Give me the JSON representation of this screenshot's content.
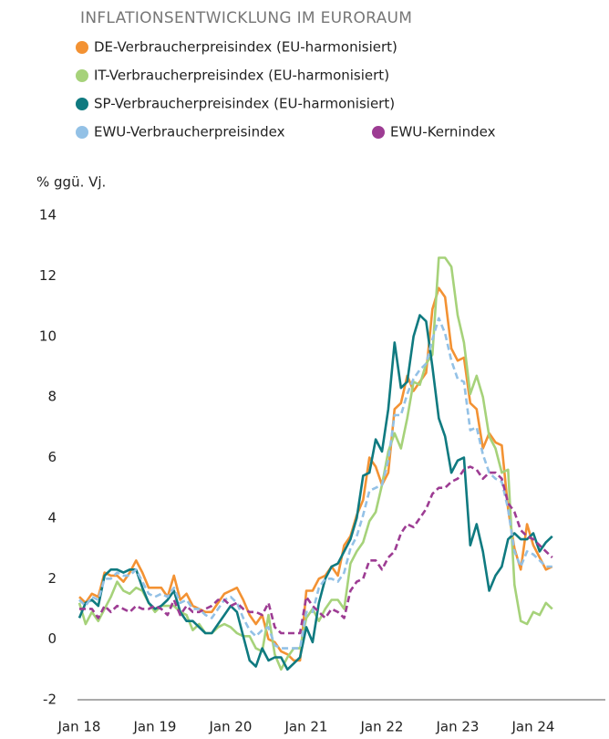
{
  "chart_data": {
    "type": "line",
    "title": "INFLATIONSENTWICKLUNG IM EURORAUM",
    "y_label": "% ggü. Vj.",
    "categories": [
      "Jan 18",
      null,
      null,
      null,
      null,
      null,
      null,
      null,
      null,
      null,
      null,
      null,
      "Jan 19",
      null,
      null,
      null,
      null,
      null,
      null,
      null,
      null,
      null,
      null,
      null,
      "Jan 20",
      null,
      null,
      null,
      null,
      null,
      null,
      null,
      null,
      null,
      null,
      null,
      "Jan 21",
      null,
      null,
      null,
      null,
      null,
      null,
      null,
      null,
      null,
      null,
      null,
      "Jan 22",
      null,
      null,
      null,
      null,
      null,
      null,
      null,
      null,
      null,
      null,
      null,
      "Jan 23",
      null,
      null,
      null,
      null,
      null,
      null,
      null,
      null,
      null,
      null,
      null,
      "Jan 24",
      null,
      null,
      null
    ],
    "ylim": [
      -2,
      14
    ],
    "yticks": [
      -2,
      0,
      2,
      4,
      6,
      8,
      10,
      12,
      14
    ],
    "grid": false,
    "series": [
      {
        "name": "DE-Verbraucherpreisindex (EU-harmonisiert)",
        "color": "#f39233",
        "dashed": false,
        "values": [
          1.4,
          1.2,
          1.5,
          1.4,
          2.2,
          2.1,
          2.1,
          1.9,
          2.2,
          2.6,
          2.2,
          1.7,
          1.7,
          1.7,
          1.4,
          2.1,
          1.3,
          1.5,
          1.1,
          1.0,
          0.9,
          0.9,
          1.2,
          1.5,
          1.6,
          1.7,
          1.3,
          0.8,
          0.5,
          0.8,
          0.0,
          -0.1,
          -0.4,
          -0.5,
          -0.7,
          -0.7,
          1.6,
          1.6,
          2.0,
          2.1,
          2.4,
          2.1,
          3.1,
          3.4,
          4.1,
          4.6,
          6.0,
          5.7,
          5.1,
          5.5,
          7.6,
          7.8,
          8.7,
          8.2,
          8.5,
          8.8,
          10.9,
          11.6,
          11.3,
          9.6,
          9.2,
          9.3,
          7.8,
          7.6,
          6.3,
          6.8,
          6.5,
          6.4,
          4.3,
          3.0,
          2.3,
          3.8,
          3.1,
          2.7,
          2.3,
          2.4
        ]
      },
      {
        "name": "IT-Verbraucherpreisindex (EU-harmonisiert)",
        "color": "#a6d27a",
        "dashed": false,
        "values": [
          1.2,
          0.5,
          0.9,
          0.6,
          1.0,
          1.4,
          1.9,
          1.6,
          1.5,
          1.7,
          1.6,
          1.2,
          0.9,
          1.1,
          1.1,
          1.1,
          0.9,
          0.8,
          0.3,
          0.5,
          0.2,
          0.2,
          0.4,
          0.5,
          0.4,
          0.2,
          0.1,
          0.1,
          -0.3,
          -0.4,
          0.8,
          -0.5,
          -1.0,
          -0.6,
          -0.3,
          -0.3,
          0.7,
          1.0,
          0.6,
          1.0,
          1.3,
          1.3,
          1.0,
          2.5,
          2.9,
          3.2,
          3.9,
          4.2,
          5.1,
          6.2,
          6.8,
          6.3,
          7.3,
          8.5,
          8.4,
          9.1,
          9.4,
          12.6,
          12.6,
          12.3,
          10.7,
          9.8,
          8.1,
          8.7,
          8.0,
          6.7,
          6.3,
          5.5,
          5.6,
          1.8,
          0.6,
          0.5,
          0.9,
          0.8,
          1.2,
          1.0
        ]
      },
      {
        "name": "SP-Verbraucherpreisindex (EU-harmonisiert)",
        "color": "#0f7a80",
        "dashed": false,
        "values": [
          0.7,
          1.2,
          1.3,
          1.1,
          2.1,
          2.3,
          2.3,
          2.2,
          2.3,
          2.3,
          1.7,
          1.2,
          1.0,
          1.1,
          1.3,
          1.6,
          0.9,
          0.6,
          0.6,
          0.4,
          0.2,
          0.2,
          0.5,
          0.8,
          1.1,
          0.9,
          0.1,
          -0.7,
          -0.9,
          -0.3,
          -0.7,
          -0.6,
          -0.6,
          -1.0,
          -0.8,
          -0.6,
          0.4,
          -0.1,
          1.2,
          2.0,
          2.4,
          2.5,
          2.9,
          3.3,
          4.0,
          5.4,
          5.5,
          6.6,
          6.2,
          7.6,
          9.8,
          8.3,
          8.5,
          10.0,
          10.7,
          10.5,
          9.0,
          7.3,
          6.7,
          5.5,
          5.9,
          6.0,
          3.1,
          3.8,
          2.9,
          1.6,
          2.1,
          2.4,
          3.3,
          3.5,
          3.3,
          3.3,
          3.5,
          2.9,
          3.2,
          3.4
        ]
      },
      {
        "name": "EWU-Verbraucherpreisindex",
        "color": "#93c1e6",
        "dashed": true,
        "values": [
          1.3,
          1.1,
          1.4,
          1.3,
          2.0,
          2.0,
          2.2,
          2.1,
          2.1,
          2.3,
          1.9,
          1.5,
          1.4,
          1.5,
          1.4,
          1.7,
          1.2,
          1.3,
          1.0,
          1.0,
          0.8,
          0.7,
          1.0,
          1.3,
          1.4,
          1.2,
          0.7,
          0.3,
          0.1,
          0.3,
          0.4,
          -0.2,
          -0.3,
          -0.3,
          -0.3,
          -0.3,
          0.9,
          0.9,
          1.7,
          2.0,
          2.0,
          1.9,
          2.2,
          3.0,
          3.4,
          4.1,
          4.9,
          5.0,
          5.1,
          5.9,
          7.4,
          7.4,
          8.1,
          8.6,
          8.9,
          9.1,
          9.9,
          10.6,
          10.1,
          9.2,
          8.6,
          8.5,
          6.9,
          7.0,
          6.1,
          5.5,
          5.3,
          5.2,
          4.3,
          2.9,
          2.4,
          2.9,
          2.8,
          2.6,
          2.4,
          2.4
        ]
      },
      {
        "name": "EWU-Kernindex",
        "color": "#9d3c93",
        "dashed": true,
        "values": [
          1.0,
          1.0,
          1.0,
          0.7,
          1.1,
          0.9,
          1.1,
          1.0,
          0.9,
          1.1,
          1.0,
          1.0,
          1.1,
          1.0,
          0.8,
          1.3,
          0.8,
          1.1,
          0.9,
          0.9,
          1.0,
          1.1,
          1.3,
          1.3,
          1.1,
          1.2,
          1.0,
          0.9,
          0.9,
          0.8,
          1.2,
          0.4,
          0.2,
          0.2,
          0.2,
          0.2,
          1.4,
          1.1,
          0.9,
          0.7,
          1.0,
          0.9,
          0.7,
          1.6,
          1.9,
          2.0,
          2.6,
          2.6,
          2.3,
          2.7,
          2.9,
          3.5,
          3.8,
          3.7,
          4.0,
          4.3,
          4.8,
          5.0,
          5.0,
          5.2,
          5.3,
          5.6,
          5.7,
          5.6,
          5.3,
          5.5,
          5.5,
          5.3,
          4.5,
          4.2,
          3.6,
          3.4,
          3.3,
          3.1,
          2.9,
          2.7
        ]
      }
    ]
  }
}
